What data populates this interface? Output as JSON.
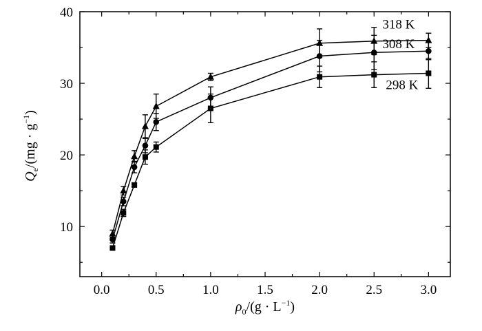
{
  "chart_data": {
    "type": "line",
    "title": "",
    "x_axis": {
      "label_var": "ρ",
      "label_sub": "0",
      "label_rest": "/(g · L",
      "label_sup": "−1",
      "label_close": ")",
      "range": [
        -0.2,
        3.2
      ],
      "ticks": [
        "0.0",
        "0.5",
        "1.0",
        "1.5",
        "2.0",
        "2.5",
        "3.0"
      ]
    },
    "y_axis": {
      "label_var": "Q",
      "label_sub": "e",
      "label_rest": "/(mg · g",
      "label_sup": "−1",
      "label_close": ")",
      "range": [
        3,
        40
      ],
      "ticks": [
        "10",
        "20",
        "30",
        "40"
      ]
    },
    "x": [
      0.1,
      0.2,
      0.3,
      0.4,
      0.5,
      1.0,
      2.0,
      2.5,
      3.0
    ],
    "series": [
      {
        "name": "318 K",
        "marker": "triangle",
        "values": [
          9.0,
          15.0,
          19.8,
          24.0,
          26.8,
          30.9,
          35.6,
          35.9,
          36.0
        ],
        "errors": [
          0.5,
          0.6,
          0.8,
          1.6,
          1.7,
          0.5,
          2.0,
          1.9,
          1.0
        ]
      },
      {
        "name": "308 K",
        "marker": "circle",
        "values": [
          8.2,
          13.5,
          18.3,
          21.3,
          24.6,
          28.0,
          33.8,
          34.3,
          34.5
        ],
        "errors": [
          0.5,
          0.6,
          0.8,
          1.0,
          1.2,
          1.5,
          2.2,
          2.4,
          1.2
        ]
      },
      {
        "name": "298 K",
        "marker": "square",
        "values": [
          7.0,
          11.9,
          15.8,
          19.7,
          21.1,
          26.5,
          30.9,
          31.2,
          31.4
        ],
        "errors": [
          0.3,
          0.5,
          0.3,
          1.0,
          0.7,
          2.0,
          1.5,
          1.8,
          2.1
        ]
      }
    ]
  }
}
